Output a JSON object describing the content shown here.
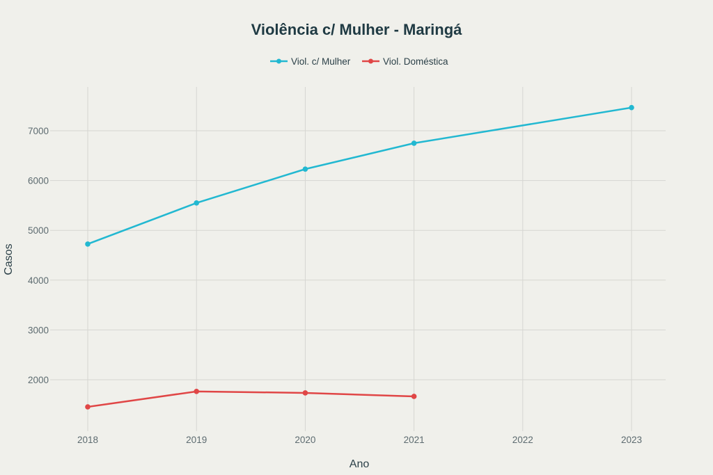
{
  "chart_data": {
    "type": "line",
    "title": "Violência c/ Mulher - Maringá",
    "xlabel": "Ano",
    "ylabel": "Casos",
    "x": [
      2018,
      2019,
      2020,
      2021,
      2022,
      2023
    ],
    "xticks": [
      "2018",
      "2019",
      "2020",
      "2021",
      "2022",
      "2023"
    ],
    "yticks": [
      "2000",
      "3000",
      "4000",
      "5000",
      "6000",
      "7000"
    ],
    "ylim": [
      1040,
      7880
    ],
    "grid": true,
    "legend_position": "top-center",
    "series": [
      {
        "name": "Viol. c/ Mulher",
        "color": "#22b8d1",
        "x": [
          2018,
          2019,
          2020,
          2021,
          2023
        ],
        "values": [
          4725,
          5550,
          6230,
          6750,
          7465
        ]
      },
      {
        "name": "Viol. Doméstica",
        "color": "#e04646",
        "x": [
          2018,
          2019,
          2020,
          2021
        ],
        "values": [
          1455,
          1765,
          1735,
          1665
        ]
      }
    ]
  }
}
